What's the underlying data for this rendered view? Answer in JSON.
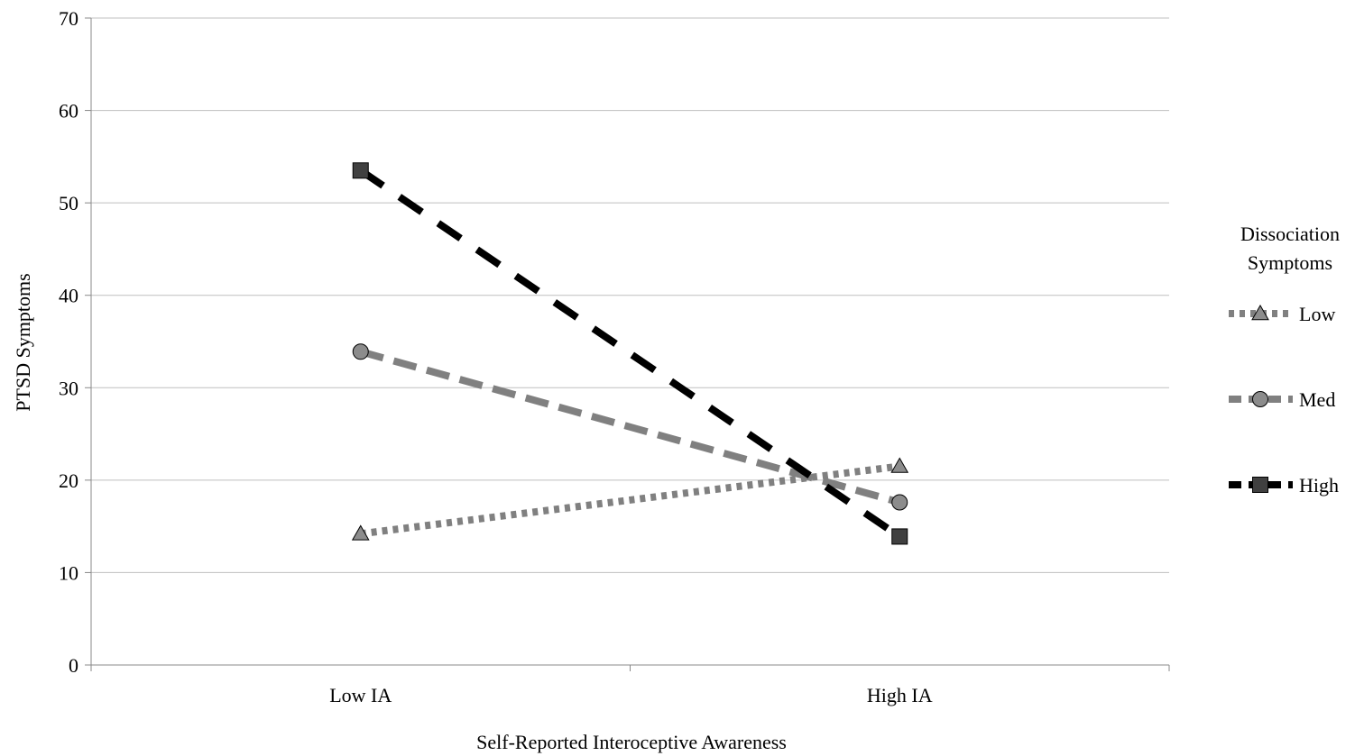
{
  "chart_data": {
    "type": "line",
    "categories": [
      "Low IA",
      "High IA"
    ],
    "series": [
      {
        "name": "Low",
        "values": [
          14.2,
          21.5
        ],
        "color": "#808080",
        "marker": "triangle",
        "dash": "dotted"
      },
      {
        "name": "Med",
        "values": [
          33.9,
          17.6
        ],
        "color": "#808080",
        "marker": "circle",
        "dash": "dashed"
      },
      {
        "name": "High",
        "values": [
          53.5,
          13.9
        ],
        "color": "#000000",
        "marker": "square",
        "dash": "long-dashed"
      }
    ],
    "title": "",
    "xlabel": "Self-Reported Interoceptive Awareness",
    "ylabel": "PTSD Symptoms",
    "ylim": [
      0,
      70
    ],
    "yticks": [
      0,
      10,
      20,
      30,
      40,
      50,
      60,
      70
    ],
    "grid": true,
    "legend": {
      "title_lines": [
        "Dissociation",
        "Symptoms"
      ],
      "placement": "right"
    }
  }
}
